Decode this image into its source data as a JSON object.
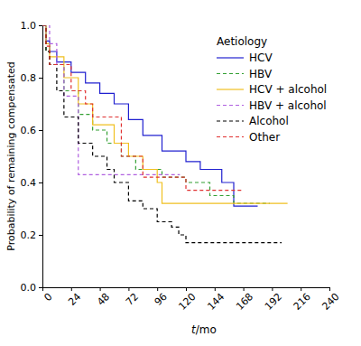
{
  "chart_data": {
    "type": "line",
    "x_label": "t/mo",
    "y_label": "Probability of remaining compensated",
    "legend_title": "Aetiology",
    "legend": "top-right",
    "grid": false,
    "xlim": [
      0,
      240
    ],
    "xticks": [
      0,
      24,
      48,
      72,
      96,
      120,
      144,
      168,
      192,
      216,
      240
    ],
    "ylim": [
      0,
      1
    ],
    "yticks": [
      {
        "value": 0,
        "label": "0.0"
      },
      0.2,
      0.4,
      0.6,
      0.8,
      {
        "value": 1,
        "label": "1.0"
      }
    ],
    "series": [
      {
        "name": "HCV",
        "color": "#2020d0",
        "line_style": "solid",
        "x": [
          0,
          3,
          6,
          12,
          24,
          36,
          48,
          60,
          72,
          84,
          100,
          120,
          132,
          150,
          160,
          180
        ],
        "values": [
          1.0,
          0.94,
          0.9,
          0.86,
          0.82,
          0.78,
          0.74,
          0.7,
          0.64,
          0.58,
          0.52,
          0.48,
          0.45,
          0.4,
          0.31,
          0.31
        ]
      },
      {
        "name": "HBV",
        "color": "#33a033",
        "line_style": "dashed",
        "x": [
          0,
          3,
          6,
          18,
          30,
          42,
          54,
          66,
          78,
          100,
          120,
          140,
          160,
          190
        ],
        "values": [
          1.0,
          0.9,
          0.85,
          0.75,
          0.66,
          0.6,
          0.55,
          0.5,
          0.45,
          0.42,
          0.4,
          0.35,
          0.32,
          0.32
        ]
      },
      {
        "name": "HCV + alcohol",
        "color": "#f0c020",
        "line_style": "solid",
        "x": [
          0,
          3,
          6,
          18,
          30,
          42,
          60,
          72,
          84,
          96,
          100,
          205
        ],
        "values": [
          1.0,
          0.93,
          0.88,
          0.8,
          0.7,
          0.62,
          0.55,
          0.5,
          0.45,
          0.4,
          0.32,
          0.32
        ]
      },
      {
        "name": "HBV + alcohol",
        "color": "#b060e0",
        "line_style": "dashed",
        "x": [
          0,
          6,
          12,
          18,
          30,
          115
        ],
        "values": [
          1.0,
          0.93,
          0.85,
          0.73,
          0.43,
          0.43
        ]
      },
      {
        "name": "Alcohol",
        "color": "#000000",
        "line_style": "dashed",
        "x": [
          0,
          3,
          6,
          12,
          18,
          30,
          42,
          54,
          60,
          72,
          84,
          96,
          108,
          114,
          120,
          200
        ],
        "values": [
          1.0,
          0.9,
          0.85,
          0.75,
          0.65,
          0.55,
          0.5,
          0.45,
          0.4,
          0.33,
          0.3,
          0.25,
          0.23,
          0.2,
          0.17,
          0.17
        ]
      },
      {
        "name": "Other",
        "color": "#e03030",
        "line_style": "dashed",
        "x": [
          0,
          3,
          6,
          24,
          36,
          42,
          66,
          84,
          120,
          168
        ],
        "values": [
          1.0,
          0.92,
          0.85,
          0.75,
          0.7,
          0.65,
          0.5,
          0.42,
          0.37,
          0.37
        ]
      }
    ]
  }
}
